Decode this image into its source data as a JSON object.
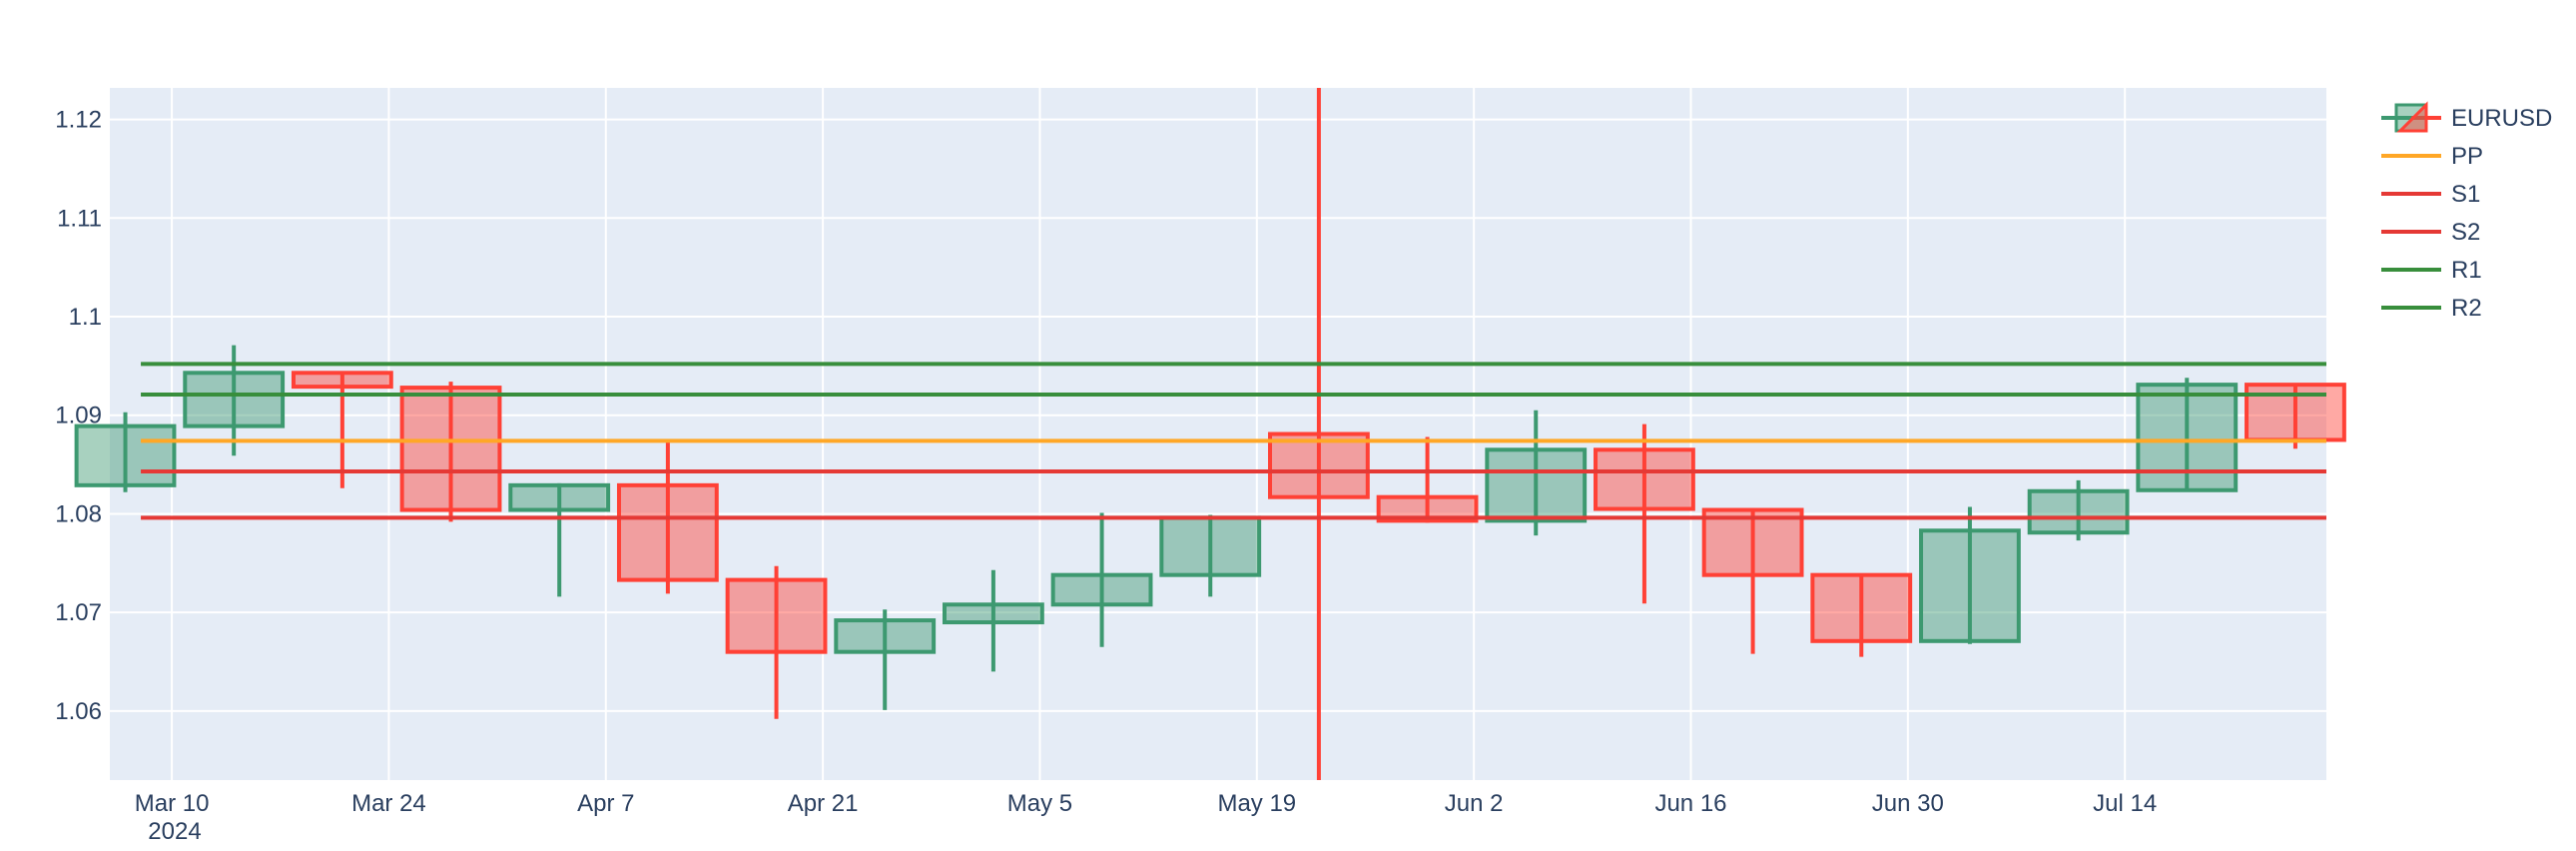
{
  "chart_data": {
    "type": "candlestick",
    "x_axis": {
      "ticks": [
        "Mar 10",
        "Mar 24",
        "Apr 7",
        "Apr 21",
        "May 5",
        "May 19",
        "Jun 2",
        "Jun 16",
        "Jun 30",
        "Jul 14"
      ],
      "tick_dates": [
        "2024-03-10",
        "2024-03-24",
        "2024-04-07",
        "2024-04-21",
        "2024-05-05",
        "2024-05-19",
        "2024-06-02",
        "2024-06-16",
        "2024-06-30",
        "2024-07-14"
      ],
      "year_label": "2024",
      "range": [
        "2024-03-06",
        "2024-07-27"
      ]
    },
    "y_axis": {
      "ticks": [
        "1.06",
        "1.07",
        "1.08",
        "1.09",
        "1.1",
        "1.11",
        "1.12"
      ],
      "tick_values": [
        1.06,
        1.07,
        1.08,
        1.09,
        1.1,
        1.11,
        1.12
      ],
      "range": [
        1.053,
        1.1232
      ]
    },
    "grid": true,
    "legend_placement": "top-right",
    "candles": {
      "name": "EURUSD",
      "increasing_color": "#3d9970",
      "decreasing_color": "#ff4136",
      "data": [
        {
          "date": "2024-03-07",
          "open": 1.0829,
          "high": 1.0903,
          "low": 1.0822,
          "close": 1.0889
        },
        {
          "date": "2024-03-14",
          "open": 1.0889,
          "high": 1.0971,
          "low": 1.0859,
          "close": 1.0943
        },
        {
          "date": "2024-03-21",
          "open": 1.0943,
          "high": 1.0944,
          "low": 1.0826,
          "close": 1.0929
        },
        {
          "date": "2024-03-28",
          "open": 1.0928,
          "high": 1.0934,
          "low": 1.0792,
          "close": 1.0804
        },
        {
          "date": "2024-04-04",
          "open": 1.0804,
          "high": 1.0831,
          "low": 1.0716,
          "close": 1.0829
        },
        {
          "date": "2024-04-11",
          "open": 1.0829,
          "high": 1.0874,
          "low": 1.0719,
          "close": 1.0733
        },
        {
          "date": "2024-04-18",
          "open": 1.0733,
          "high": 1.0747,
          "low": 1.0592,
          "close": 1.066
        },
        {
          "date": "2024-04-25",
          "open": 1.066,
          "high": 1.0703,
          "low": 1.0601,
          "close": 1.0692
        },
        {
          "date": "2024-05-02",
          "open": 1.069,
          "high": 1.0743,
          "low": 1.064,
          "close": 1.0708
        },
        {
          "date": "2024-05-09",
          "open": 1.0708,
          "high": 1.0801,
          "low": 1.0665,
          "close": 1.0738
        },
        {
          "date": "2024-05-16",
          "open": 1.0738,
          "high": 1.0799,
          "low": 1.0716,
          "close": 1.0796
        },
        {
          "date": "2024-05-23",
          "open": 1.0881,
          "high": 1.1232,
          "low": 1.053,
          "close": 1.0817
        },
        {
          "date": "2024-05-30",
          "open": 1.0817,
          "high": 1.0878,
          "low": 1.0791,
          "close": 1.0793
        },
        {
          "date": "2024-06-06",
          "open": 1.0793,
          "high": 1.0905,
          "low": 1.0778,
          "close": 1.0865
        },
        {
          "date": "2024-06-13",
          "open": 1.0865,
          "high": 1.0891,
          "low": 1.0709,
          "close": 1.0805
        },
        {
          "date": "2024-06-20",
          "open": 1.0804,
          "high": 1.0806,
          "low": 1.0658,
          "close": 1.0738
        },
        {
          "date": "2024-06-27",
          "open": 1.0738,
          "high": 1.0738,
          "low": 1.0655,
          "close": 1.0671
        },
        {
          "date": "2024-07-04",
          "open": 1.0671,
          "high": 1.0807,
          "low": 1.0668,
          "close": 1.0783
        },
        {
          "date": "2024-07-11",
          "open": 1.0781,
          "high": 1.0834,
          "low": 1.0773,
          "close": 1.0823
        },
        {
          "date": "2024-07-18",
          "open": 1.0824,
          "high": 1.0938,
          "low": 1.0823,
          "close": 1.0931
        },
        {
          "date": "2024-07-25",
          "open": 1.0931,
          "high": 1.0931,
          "low": 1.0866,
          "close": 1.0875
        }
      ]
    },
    "levels": [
      {
        "name": "PP",
        "value": 1.0874,
        "color": "#ffa726"
      },
      {
        "name": "S1",
        "value": 1.0843,
        "color": "#e53935"
      },
      {
        "name": "S2",
        "value": 1.0796,
        "color": "#e53935"
      },
      {
        "name": "R1",
        "value": 1.0921,
        "color": "#388e3c"
      },
      {
        "name": "R2",
        "value": 1.0952,
        "color": "#388e3c"
      }
    ],
    "level_range": [
      "2024-03-08",
      "2024-07-27"
    ]
  }
}
